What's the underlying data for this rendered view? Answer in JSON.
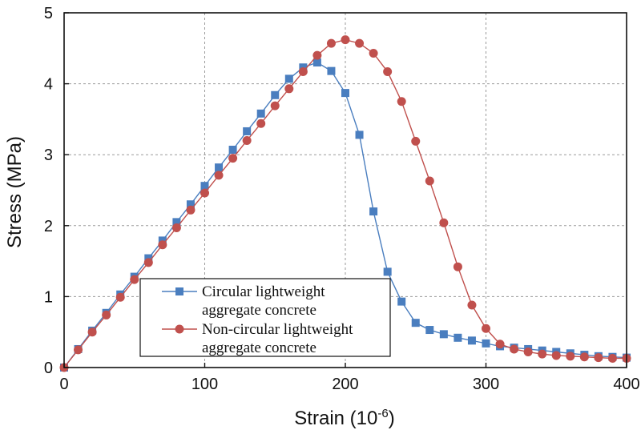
{
  "chart_data": {
    "type": "line",
    "title": "",
    "xlabel": "Strain (10",
    "xlabel_sup": "-6",
    "xlabel_close": ")",
    "ylabel": "Stress (MPa)",
    "xlim": [
      0,
      400
    ],
    "ylim": [
      0,
      5
    ],
    "xticks": [
      0,
      100,
      200,
      300,
      400
    ],
    "yticks": [
      0,
      1,
      2,
      3,
      4,
      5
    ],
    "grid": true,
    "legend_position": "bottom-left",
    "series": [
      {
        "name": "Circular lightweight aggregate concrete",
        "legend_lines": [
          "Circular lightweight",
          "aggregate concrete"
        ],
        "color": "#4a7ebf",
        "marker": "square",
        "x": [
          0,
          10,
          20,
          30,
          40,
          50,
          60,
          70,
          80,
          90,
          100,
          110,
          120,
          130,
          140,
          150,
          160,
          170,
          180,
          190,
          200,
          210,
          220,
          230,
          240,
          250,
          260,
          270,
          280,
          290,
          300,
          310,
          320,
          330,
          340,
          350,
          360,
          370,
          380,
          390,
          400
        ],
        "y": [
          0,
          0.26,
          0.52,
          0.77,
          1.03,
          1.28,
          1.54,
          1.79,
          2.05,
          2.3,
          2.56,
          2.82,
          3.07,
          3.33,
          3.58,
          3.84,
          4.07,
          4.23,
          4.3,
          4.18,
          3.87,
          3.28,
          2.2,
          1.35,
          0.93,
          0.63,
          0.53,
          0.47,
          0.42,
          0.38,
          0.34,
          0.3,
          0.28,
          0.26,
          0.24,
          0.22,
          0.2,
          0.18,
          0.16,
          0.15,
          0.14
        ]
      },
      {
        "name": "Non-circular lightweight aggregate concrete",
        "legend_lines": [
          "Non-circular lightweight",
          "aggregate concrete"
        ],
        "color": "#c0504d",
        "marker": "circle",
        "x": [
          0,
          10,
          20,
          30,
          40,
          50,
          60,
          70,
          80,
          90,
          100,
          110,
          120,
          130,
          140,
          150,
          160,
          170,
          180,
          190,
          200,
          210,
          220,
          230,
          240,
          250,
          260,
          270,
          280,
          290,
          300,
          310,
          320,
          330,
          340,
          350,
          360,
          370,
          380,
          390,
          400
        ],
        "y": [
          0,
          0.25,
          0.5,
          0.74,
          0.99,
          1.24,
          1.48,
          1.73,
          1.97,
          2.22,
          2.46,
          2.71,
          2.95,
          3.2,
          3.44,
          3.69,
          3.93,
          4.17,
          4.4,
          4.57,
          4.62,
          4.57,
          4.43,
          4.17,
          3.75,
          3.19,
          2.63,
          2.04,
          1.42,
          0.88,
          0.55,
          0.33,
          0.26,
          0.22,
          0.19,
          0.17,
          0.16,
          0.15,
          0.14,
          0.13,
          0.13
        ]
      }
    ]
  }
}
